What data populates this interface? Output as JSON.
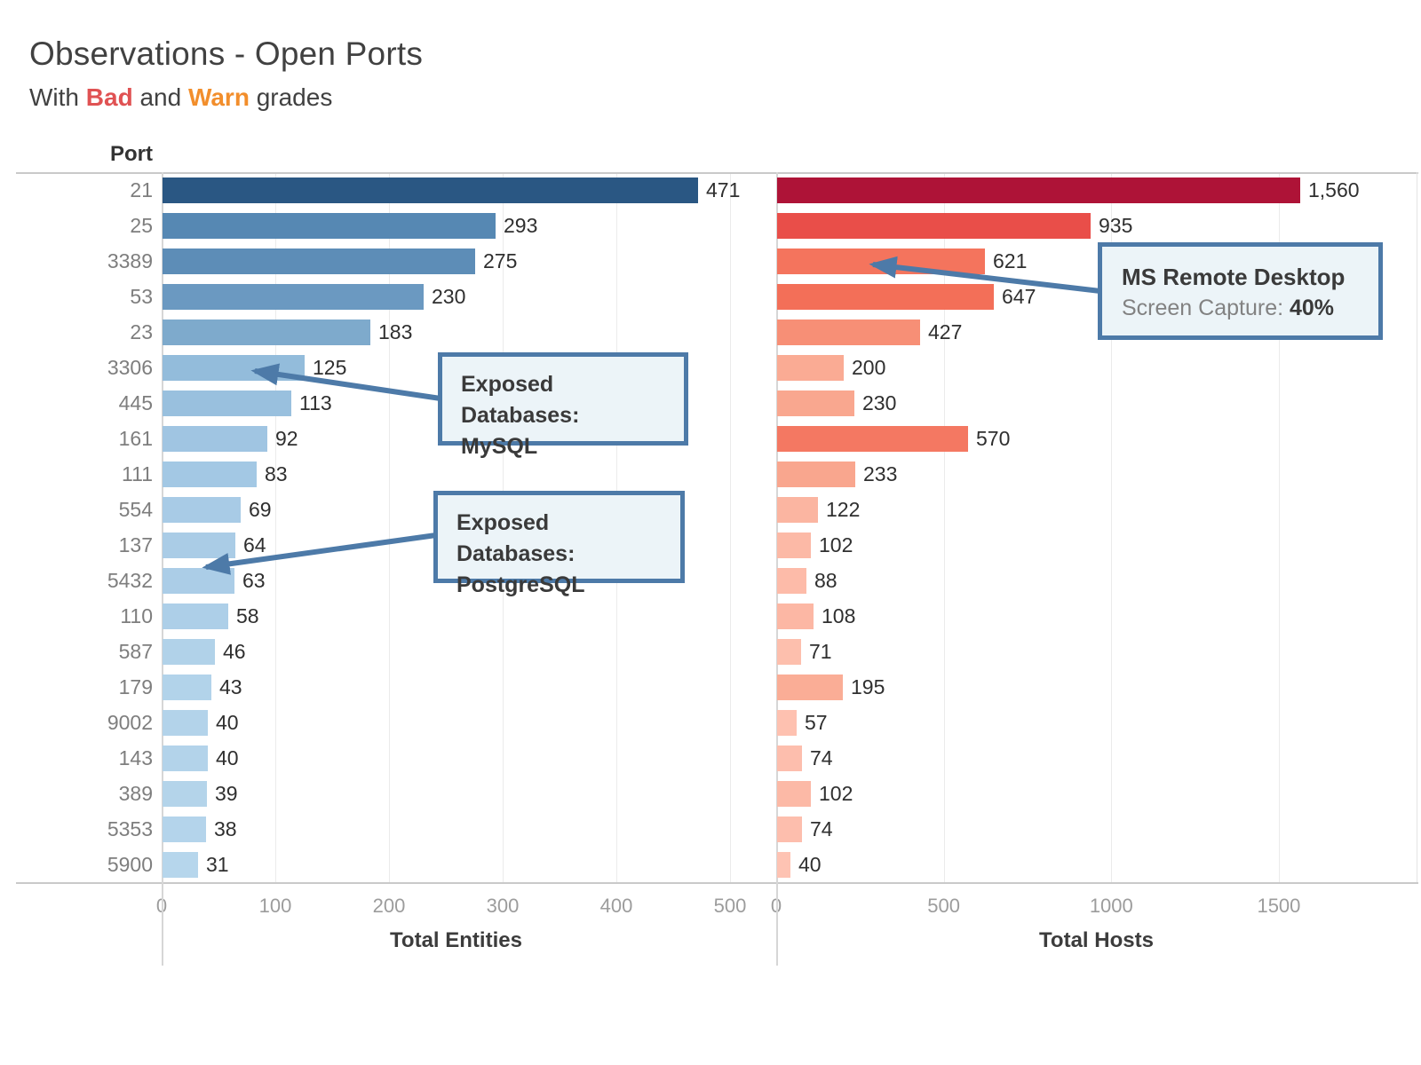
{
  "title": "Observations - Open Ports",
  "subtitle": {
    "prefix": "With ",
    "bad": "Bad",
    "and": " and ",
    "warn": "Warn",
    "suffix": " grades"
  },
  "colors": {
    "bad": "#e05253",
    "warn": "#f28e2c",
    "callout_border": "#4d7aa8",
    "callout_bg": "#ecf4f8",
    "max_entities_bar": "#2a5783",
    "max_hosts_bar": "#ae1337"
  },
  "chart_data": {
    "type": "bar",
    "orientation": "horizontal",
    "row_header": "Port",
    "grid": true,
    "categories": [
      "21",
      "25",
      "3389",
      "53",
      "23",
      "3306",
      "445",
      "161",
      "111",
      "554",
      "137",
      "5432",
      "110",
      "587",
      "179",
      "9002",
      "143",
      "389",
      "5353",
      "5900"
    ],
    "series": [
      {
        "name": "Total Entities",
        "values": [
          471,
          293,
          275,
          230,
          183,
          125,
          113,
          92,
          83,
          69,
          64,
          63,
          58,
          46,
          43,
          40,
          40,
          39,
          38,
          31
        ],
        "labels": [
          "471",
          "293",
          "275",
          "230",
          "183",
          "125",
          "113",
          "92",
          "83",
          "69",
          "64",
          "63",
          "58",
          "46",
          "43",
          "40",
          "40",
          "39",
          "38",
          "31"
        ],
        "ticks": [
          0,
          100,
          200,
          300,
          400,
          500
        ],
        "tick_labels": [
          "0",
          "100",
          "200",
          "300",
          "400",
          "500"
        ],
        "xlim": [
          0,
          518
        ],
        "bar_colors": [
          "#2a5783",
          "#5688b3",
          "#5d8db7",
          "#6b99c1",
          "#7eaacc",
          "#93bcdb",
          "#99c0de",
          "#a0c5e2",
          "#a3c8e4",
          "#a8cbe6",
          "#aacce6",
          "#abcde7",
          "#adcfe8",
          "#b1d2e9",
          "#b2d3ea",
          "#b3d3ea",
          "#b3d3ea",
          "#b4d4ea",
          "#b4d4eb",
          "#b6d6ec"
        ]
      },
      {
        "name": "Total Hosts",
        "values": [
          1560,
          935,
          621,
          647,
          427,
          200,
          230,
          570,
          233,
          122,
          102,
          88,
          108,
          71,
          195,
          57,
          74,
          102,
          74,
          40
        ],
        "labels": [
          "1,560",
          "935",
          "621",
          "647",
          "427",
          "200",
          "230",
          "570",
          "233",
          "122",
          "102",
          "88",
          "108",
          "71",
          "195",
          "57",
          "74",
          "102",
          "74",
          "40"
        ],
        "ticks": [
          0,
          500,
          1000,
          1500
        ],
        "tick_labels": [
          "0",
          "500",
          "1000",
          "1500"
        ],
        "xlim": [
          0,
          1910
        ],
        "bar_colors": [
          "#ae1337",
          "#e94e49",
          "#f4745d",
          "#f36f58",
          "#f78f76",
          "#faab94",
          "#f9a78f",
          "#f47862",
          "#f9a68e",
          "#fbb5a1",
          "#fcb9a6",
          "#fdbba9",
          "#fcb7a4",
          "#fdbfad",
          "#faad96",
          "#fec1b0",
          "#fdbead",
          "#fcb9a6",
          "#fdbead",
          "#fec3b3"
        ]
      }
    ],
    "annotations": [
      {
        "id": "mysql",
        "line1": "Exposed Databases:",
        "line2": "MySQL",
        "target_port": "3306",
        "series": "Total Entities"
      },
      {
        "id": "postgresql",
        "line1": "Exposed Databases:",
        "line2": "PostgreSQL",
        "target_port": "5432",
        "series": "Total Entities"
      },
      {
        "id": "ms-remote-desktop",
        "line1": "MS Remote Desktop",
        "detail_label": "Screen Capture: ",
        "detail_value": "40%",
        "target_port": "3389",
        "series": "Total Hosts"
      }
    ]
  }
}
